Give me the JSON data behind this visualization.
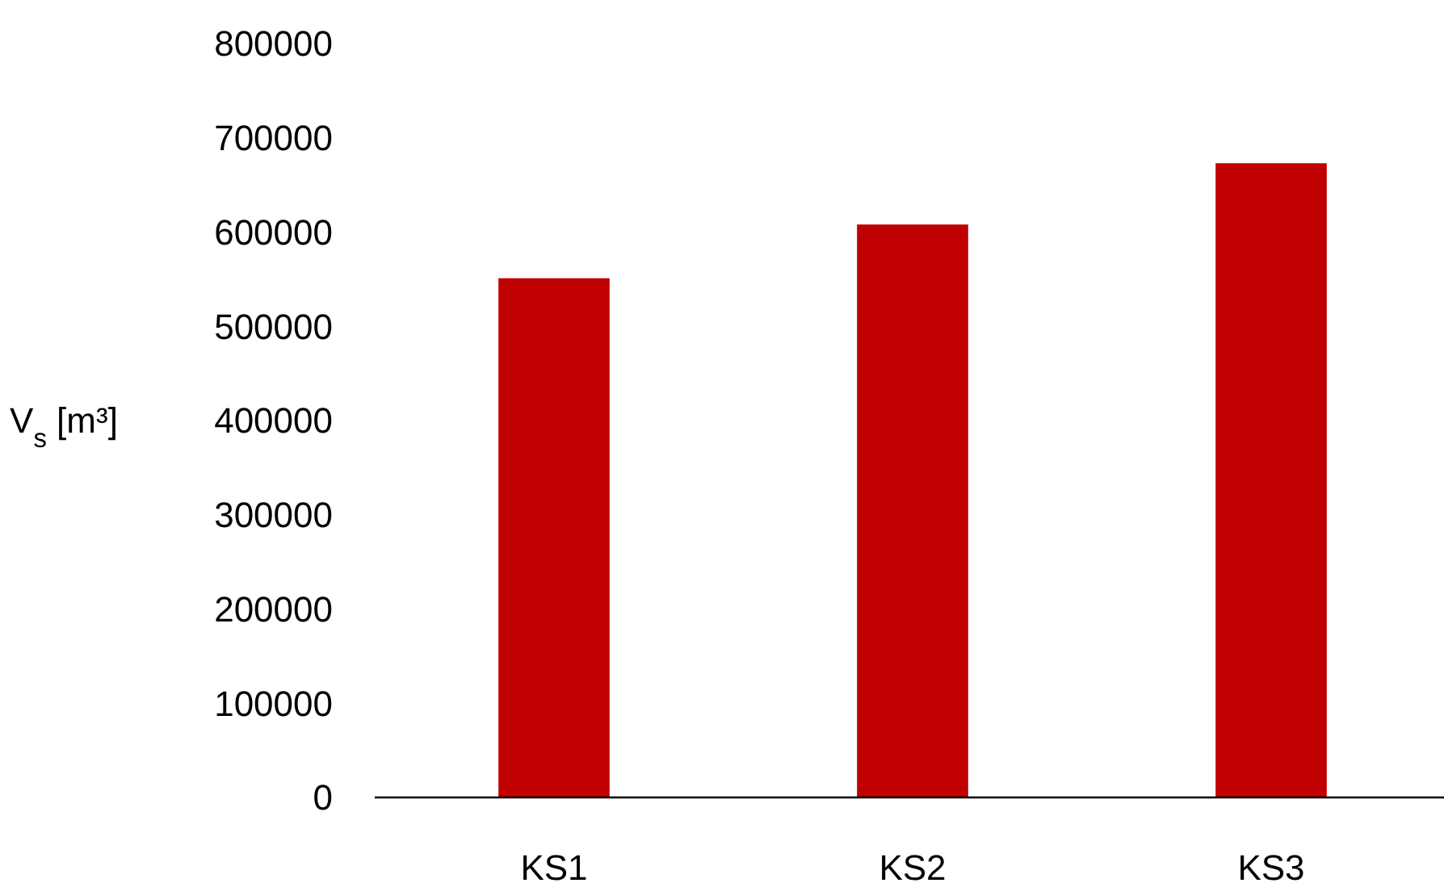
{
  "chart_data": {
    "type": "bar",
    "ylabel": "V$_{s}$ [m³]",
    "categories": [
      "KS1",
      "KS2",
      "KS3"
    ],
    "values": [
      551000,
      608000,
      673000
    ],
    "color": "#c00000",
    "ylim": [
      0,
      800000
    ],
    "yticks": [
      0,
      100000,
      200000,
      300000,
      400000,
      500000,
      600000,
      700000,
      800000
    ],
    "grid": false
  }
}
